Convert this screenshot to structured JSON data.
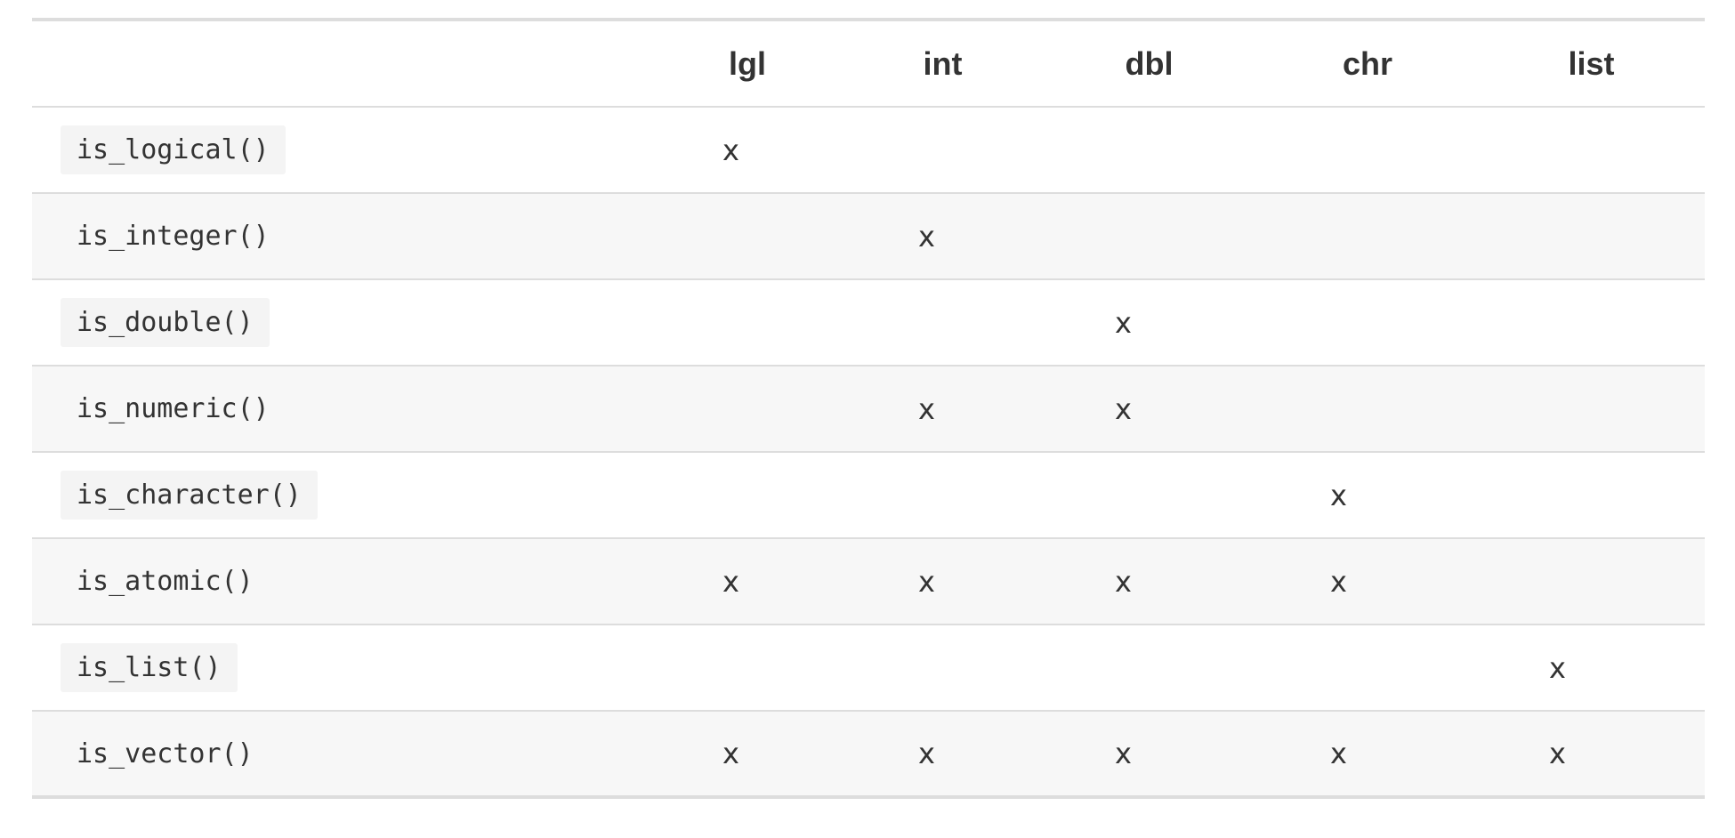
{
  "table": {
    "headers": [
      "",
      "lgl",
      "int",
      "dbl",
      "chr",
      "list"
    ],
    "rows": [
      {
        "fn": "is_logical()",
        "cells": [
          "x",
          "",
          "",
          "",
          ""
        ]
      },
      {
        "fn": "is_integer()",
        "cells": [
          "",
          "x",
          "",
          "",
          ""
        ]
      },
      {
        "fn": "is_double()",
        "cells": [
          "",
          "",
          "x",
          "",
          ""
        ]
      },
      {
        "fn": "is_numeric()",
        "cells": [
          "",
          "x",
          "x",
          "",
          ""
        ]
      },
      {
        "fn": "is_character()",
        "cells": [
          "",
          "",
          "",
          "x",
          ""
        ]
      },
      {
        "fn": "is_atomic()",
        "cells": [
          "x",
          "x",
          "x",
          "x",
          ""
        ]
      },
      {
        "fn": "is_list()",
        "cells": [
          "",
          "",
          "",
          "",
          "x"
        ]
      },
      {
        "fn": "is_vector()",
        "cells": [
          "x",
          "x",
          "x",
          "x",
          "x"
        ]
      }
    ]
  },
  "colors": {
    "text": "#333333",
    "border": "#dddddd",
    "stripe": "#f7f7f7",
    "code_bg": "#f4f4f4"
  }
}
